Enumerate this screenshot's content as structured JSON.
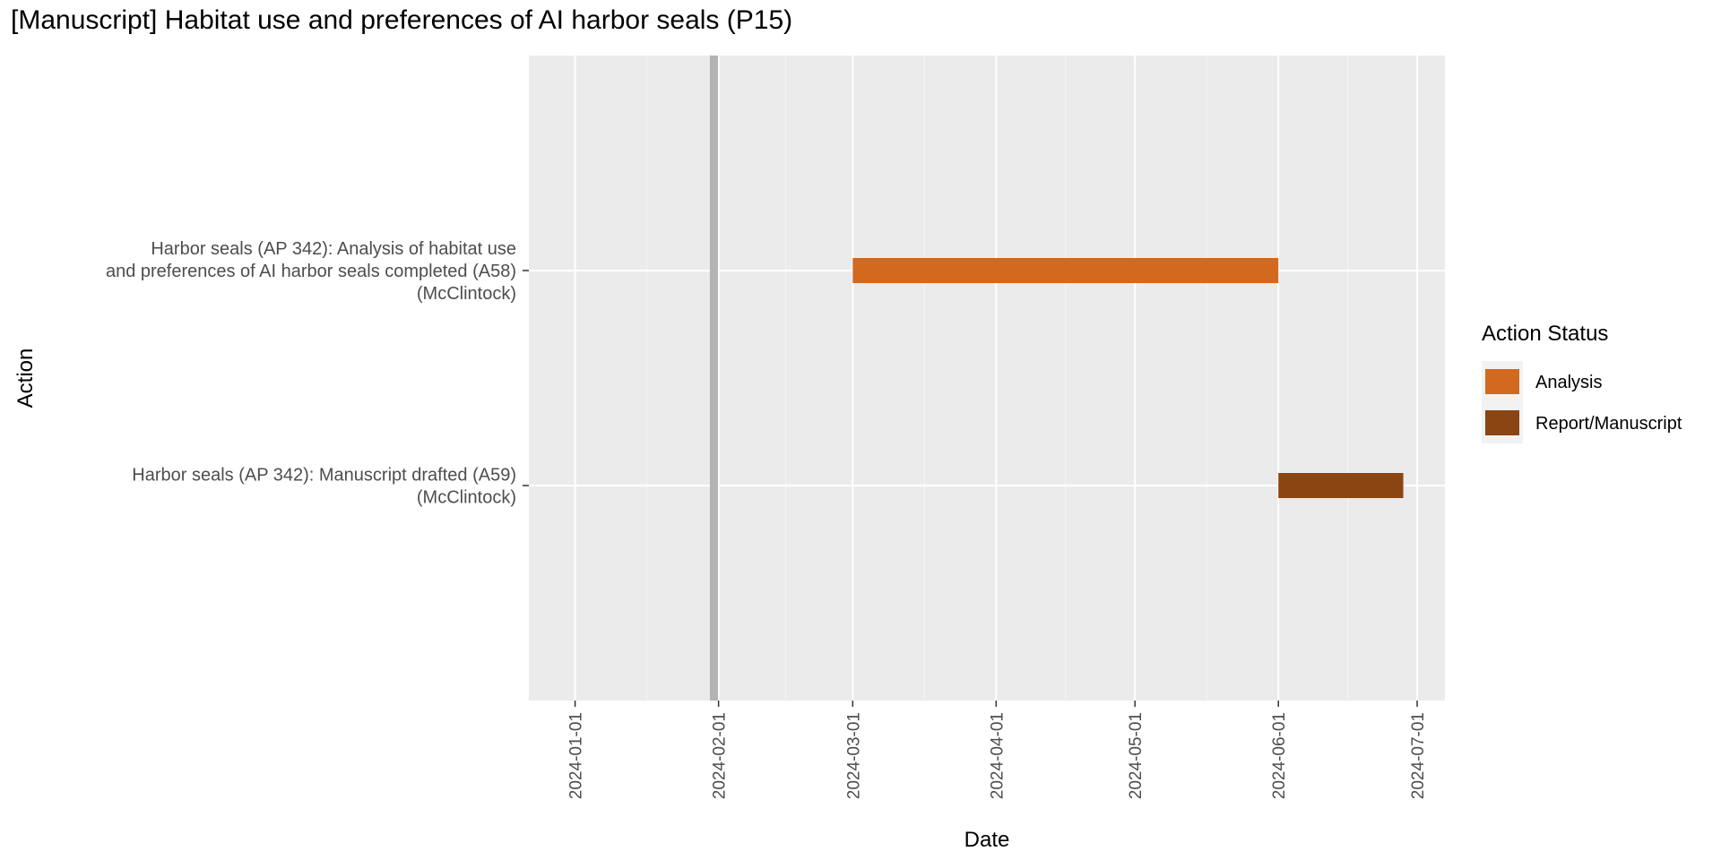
{
  "chart_data": {
    "type": "gantt",
    "title": "[Manuscript] Habitat use and preferences of AI harbor seals (P15)",
    "xlabel": "Date",
    "ylabel": "Action",
    "x_ticks": [
      "2024-01-01",
      "2024-02-01",
      "2024-03-01",
      "2024-04-01",
      "2024-05-01",
      "2024-06-01",
      "2024-07-01"
    ],
    "xlim": [
      "2023-12-22",
      "2024-07-07"
    ],
    "reference_line": {
      "date": "2024-01-31",
      "color": "#b3b3b3"
    },
    "tasks": [
      {
        "label_lines": [
          "Harbor seals (AP 342): Analysis of habitat use",
          "and preferences of AI harbor seals completed (A58)",
          "(McClintock)"
        ],
        "start": "2024-03-01",
        "end": "2024-06-01",
        "status": "Analysis"
      },
      {
        "label_lines": [
          "Harbor seals (AP 342): Manuscript drafted (A59)",
          "(McClintock)"
        ],
        "start": "2024-06-01",
        "end": "2024-06-28",
        "status": "Report/Manuscript"
      }
    ],
    "legend": {
      "title": "Action Status",
      "position": "right",
      "items": [
        {
          "name": "Analysis",
          "color": "#d2691e"
        },
        {
          "name": "Report/Manuscript",
          "color": "#8b4513"
        }
      ]
    },
    "grid": true,
    "panel_color": "#ebebeb"
  }
}
